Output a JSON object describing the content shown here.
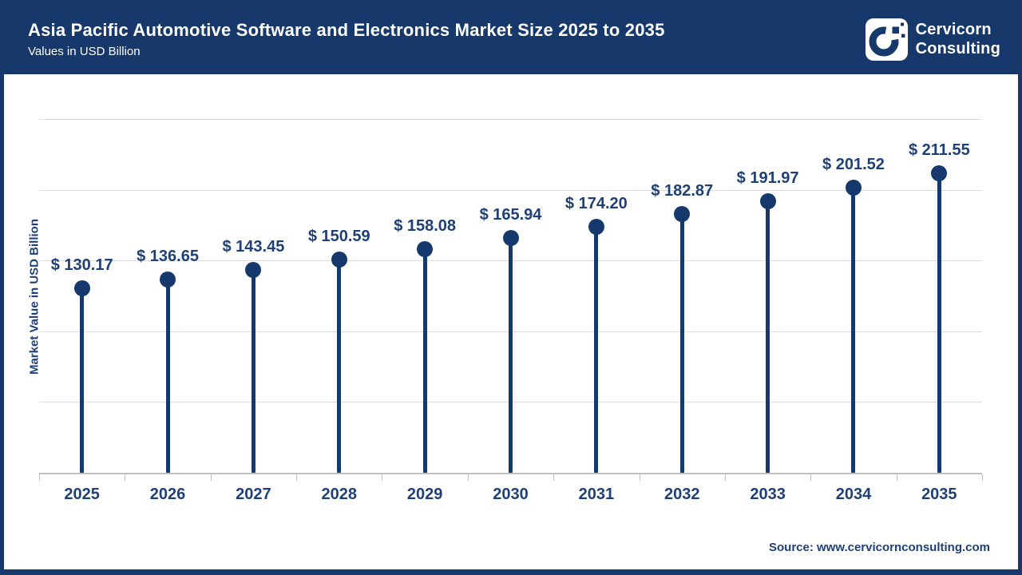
{
  "header": {
    "title": "Asia Pacific Automotive Software and Electronics Market Size 2025 to 2035",
    "subtitle": "Values in USD Billion",
    "brand": {
      "name_line1": "Cervicorn",
      "name_line2": "Consulting",
      "logo_icon": "cervicorn-c-logo"
    }
  },
  "chart_data": {
    "type": "lollipop",
    "title": "Asia Pacific Automotive Software and Electronics Market Size 2025 to 2035",
    "subtitle": "Values in USD Billion",
    "categories": [
      "2025",
      "2026",
      "2027",
      "2028",
      "2029",
      "2030",
      "2031",
      "2032",
      "2033",
      "2034",
      "2035"
    ],
    "values": [
      130.17,
      136.65,
      143.45,
      150.59,
      158.08,
      165.94,
      174.2,
      182.87,
      191.97,
      201.52,
      211.55
    ],
    "value_labels": [
      "$ 130.17",
      "$ 136.65",
      "$ 143.45",
      "$ 150.59",
      "$ 158.08",
      "$ 165.94",
      "$ 174.20",
      "$ 182.87",
      "$ 191.97",
      "$ 201.52",
      "$ 211.55"
    ],
    "xlabel": "",
    "ylabel": "Market Value in USD Billion",
    "ylim": [
      0,
      275
    ],
    "gridline_step": 50,
    "grid": "horizontal-only",
    "legend": "none",
    "y_tick_labels_shown": false
  },
  "footer": {
    "source": "Source: www.cervicornconsulting.com"
  },
  "colors": {
    "header_background": "#17386A",
    "page_border": "#17386A",
    "point": "#15396D",
    "value_label_text": "#1F4077",
    "axis_line": "#BFBFBF",
    "gridline": "#DDDDDD",
    "header_text": "#FFFFFF"
  }
}
